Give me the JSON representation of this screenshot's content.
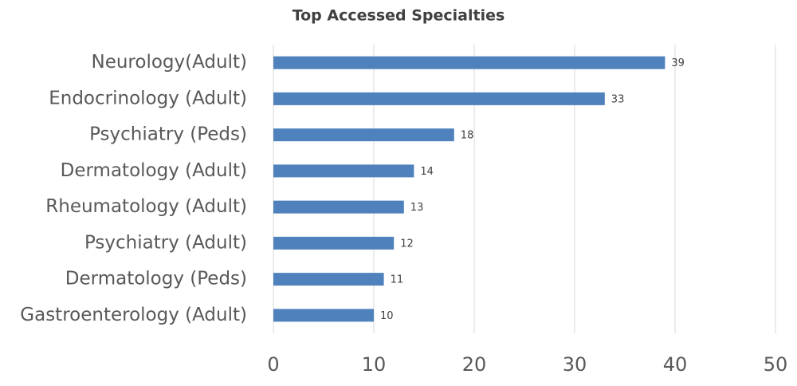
{
  "chart_data": {
    "type": "bar",
    "orientation": "horizontal",
    "title": "Top Accessed Specialties",
    "categories": [
      "Neurology(Adult)",
      "Endocrinology (Adult)",
      "Psychiatry (Peds)",
      "Dermatology (Adult)",
      "Rheumatology (Adult)",
      "Psychiatry (Adult)",
      "Dermatology (Peds)",
      "Gastroenterology (Adult)"
    ],
    "values": [
      39,
      33,
      18,
      14,
      13,
      12,
      11,
      10
    ],
    "color": "#4f81bd",
    "xlim": [
      0,
      50
    ],
    "xticks": [
      0,
      10,
      20,
      30,
      40,
      50
    ],
    "grid": true
  }
}
